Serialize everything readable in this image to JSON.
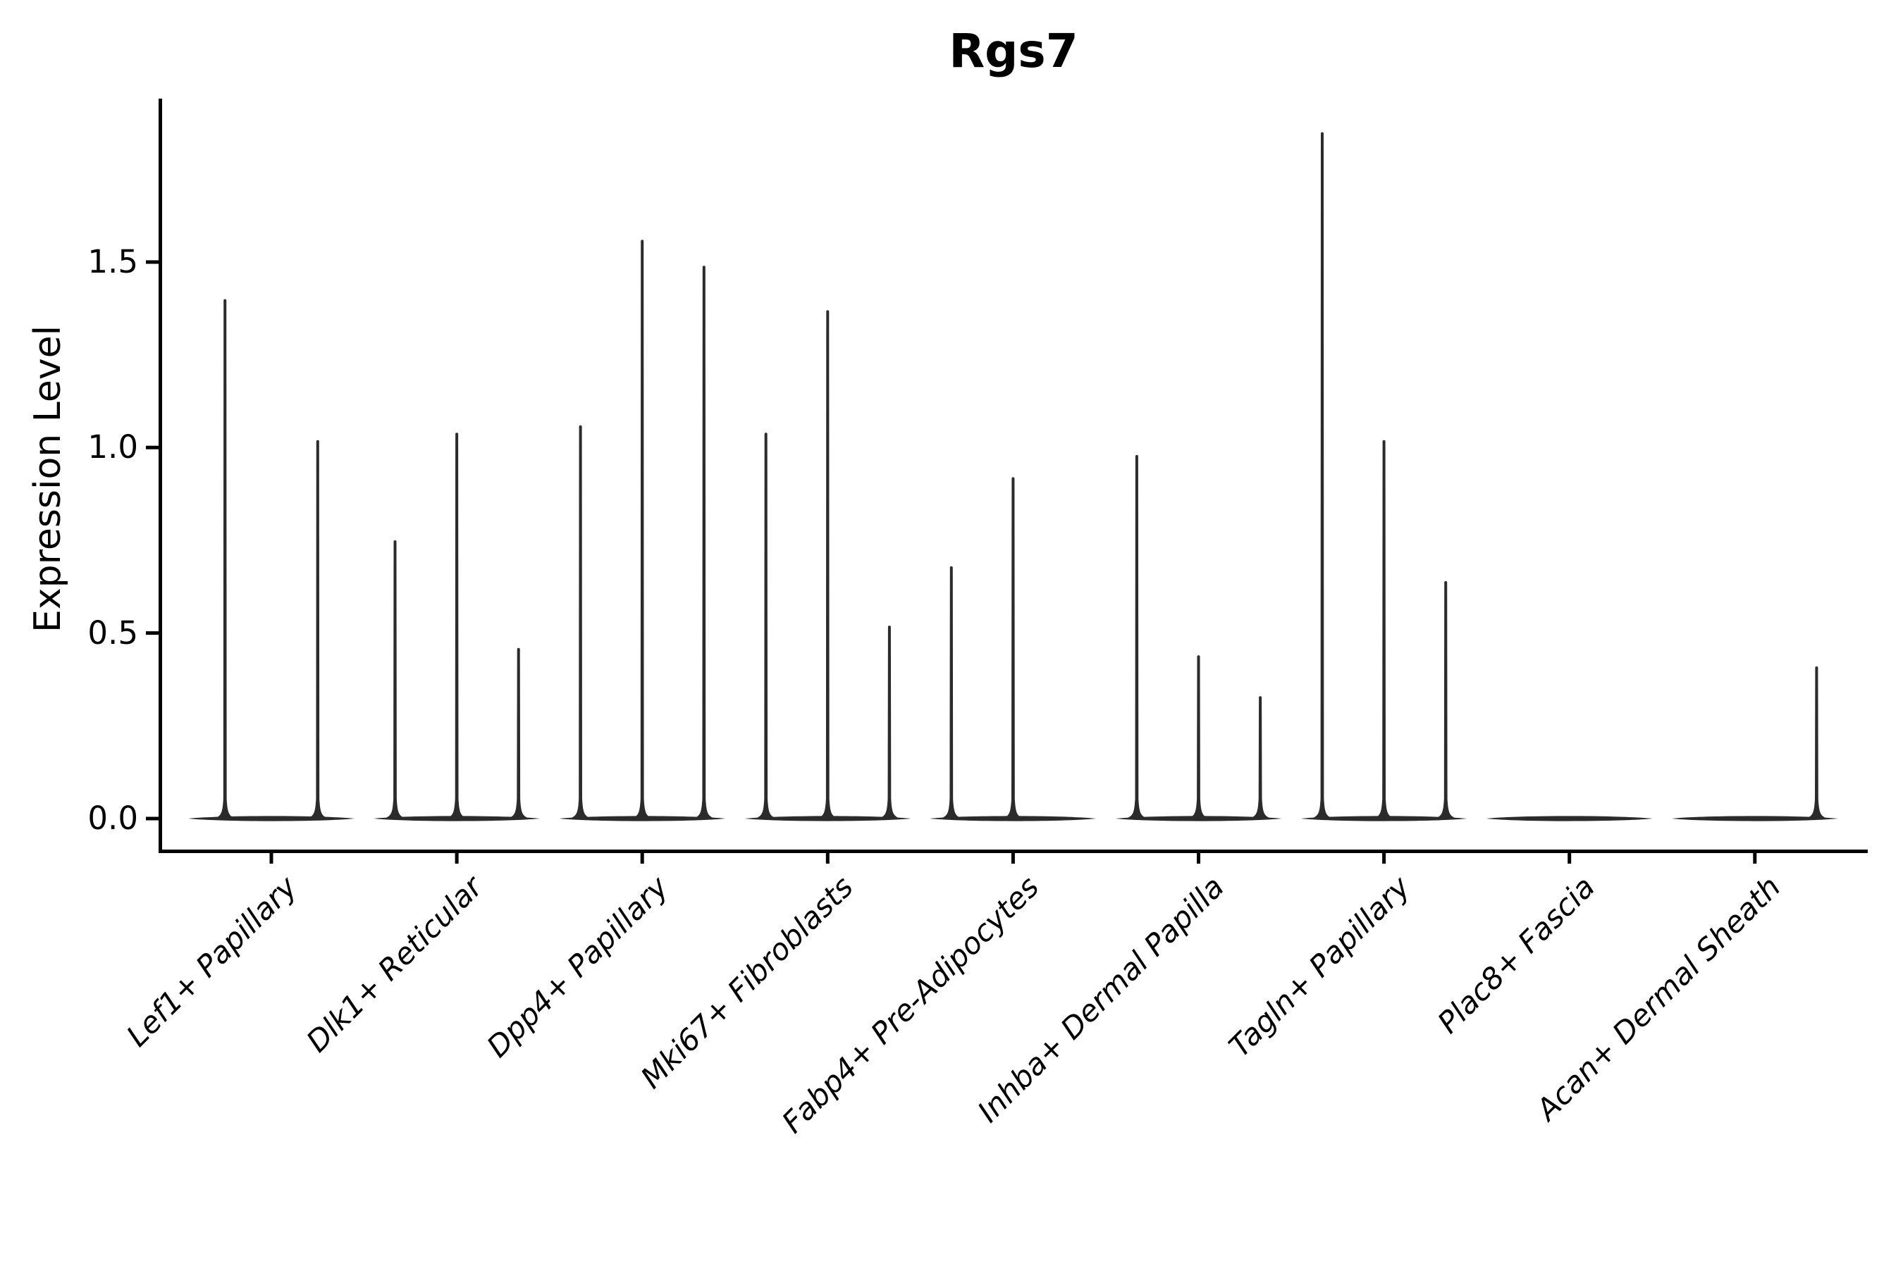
{
  "chart_data": {
    "type": "violin",
    "title": "Rgs7",
    "xlabel": "",
    "ylabel": "Expression Level",
    "y_ticks": [
      0.0,
      0.5,
      1.0,
      1.5
    ],
    "y_tick_labels": [
      "0.0",
      "0.5",
      "1.0",
      "1.5"
    ],
    "ylim": [
      -0.09,
      1.94
    ],
    "grid": false,
    "legend": "none",
    "x_tick_rotation_deg": 45,
    "description": "Violin plot of Rgs7 expression; each category shows up to three very thin violins (most cells at 0, giving flat bodies with narrow spikes up to the max expression).",
    "categories": [
      {
        "label": "Lef1+ Papillary",
        "violins": [
          {
            "offset": -0.25,
            "max": 1.4
          },
          {
            "offset": 0.25,
            "max": 1.02
          }
        ]
      },
      {
        "label": "Dlk1+ Reticular",
        "violins": [
          {
            "offset": -0.333,
            "max": 0.75
          },
          {
            "offset": 0,
            "max": 1.04
          },
          {
            "offset": 0.333,
            "max": 0.46
          }
        ]
      },
      {
        "label": "Dpp4+ Papillary",
        "violins": [
          {
            "offset": -0.333,
            "max": 1.06
          },
          {
            "offset": 0,
            "max": 1.56
          },
          {
            "offset": 0.333,
            "max": 1.49
          }
        ]
      },
      {
        "label": "Mki67+ Fibroblasts",
        "violins": [
          {
            "offset": -0.333,
            "max": 1.04
          },
          {
            "offset": 0,
            "max": 1.37
          },
          {
            "offset": 0.333,
            "max": 0.52
          }
        ]
      },
      {
        "label": "Fabp4+ Pre-Adipocytes",
        "violins": [
          {
            "offset": -0.333,
            "max": 0.68
          },
          {
            "offset": 0,
            "max": 0.92
          }
        ]
      },
      {
        "label": "Inhba+ Dermal Papilla",
        "violins": [
          {
            "offset": -0.333,
            "max": 0.98
          },
          {
            "offset": 0,
            "max": 0.44
          },
          {
            "offset": 0.333,
            "max": 0.33
          }
        ]
      },
      {
        "label": "Tagln+ Papillary",
        "violins": [
          {
            "offset": -0.333,
            "max": 1.85
          },
          {
            "offset": 0,
            "max": 1.02
          },
          {
            "offset": 0.333,
            "max": 0.64
          }
        ]
      },
      {
        "label": "Plac8+ Fascia",
        "violins": []
      },
      {
        "label": "Acan+ Dermal Sheath",
        "violins": [
          {
            "offset": 0.333,
            "max": 0.41
          }
        ]
      }
    ],
    "colors": {
      "violin": "#2b2b2b",
      "axis": "#000000",
      "text": "#000000",
      "background": "#ffffff"
    }
  }
}
